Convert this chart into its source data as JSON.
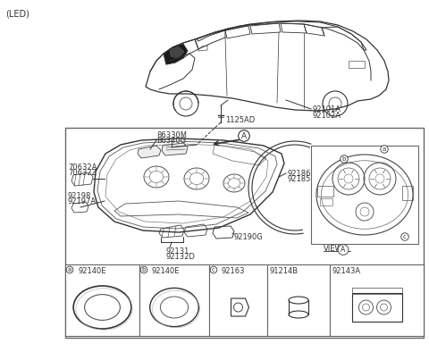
{
  "title": "(LED)",
  "background_color": "#ffffff",
  "text_color": "#333333",
  "part_labels": {
    "part_1125AD": "1125AD",
    "part_92101A": "92101A",
    "part_92102A": "92102A",
    "part_86330M": "86330M",
    "part_86340G": "86340G",
    "part_70632A": "70632A",
    "part_70632Z": "70632Z",
    "part_92198": "92198",
    "part_92197A": "92197A",
    "part_92186": "92186",
    "part_92185": "92185",
    "part_92190G": "92190G",
    "part_92131": "92131",
    "part_92132D": "92132D",
    "view_A": "VIEW",
    "bottom_a_label": "92140E",
    "bottom_b_label": "92140E",
    "bottom_c_label": "92163",
    "bottom_d_label": "91214B",
    "bottom_e_label": "92143A"
  },
  "figsize": [
    4.8,
    3.94
  ],
  "dpi": 100
}
